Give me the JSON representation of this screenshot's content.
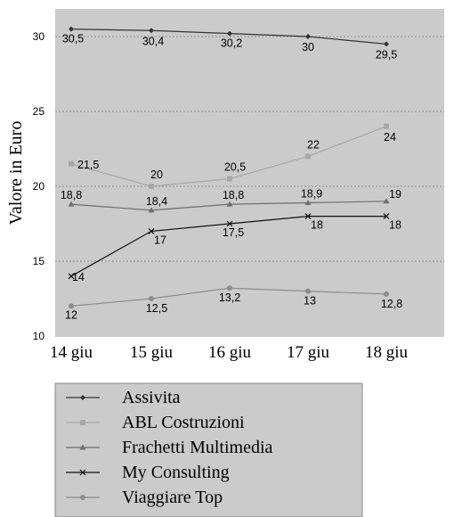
{
  "chart_data": {
    "type": "line",
    "ylabel": "Valore in Euro",
    "xlabel": "",
    "categories": [
      "14 giu",
      "15 giu",
      "16 giu",
      "17 giu",
      "18 giu"
    ],
    "ylim": [
      10,
      30
    ],
    "yticks": [
      10,
      15,
      20,
      25,
      30
    ],
    "grid": "horizontal dotted",
    "legend_position": "bottom",
    "series": [
      {
        "name": "Assivita",
        "marker": "diamond",
        "color": "#333333",
        "values": [
          30.5,
          30.4,
          30.2,
          30,
          29.5
        ],
        "labels": [
          "30,5",
          "30,4",
          "30,2",
          "30",
          "29,5"
        ]
      },
      {
        "name": "ABL Costruzioni",
        "marker": "square",
        "color": "#a8a8a8",
        "values": [
          21.5,
          20,
          20.5,
          22,
          24
        ],
        "labels": [
          "21,5",
          "20",
          "20,5",
          "22",
          "24"
        ]
      },
      {
        "name": "Frachetti Multimedia",
        "marker": "triangle",
        "color": "#6e6e6e",
        "values": [
          18.8,
          18.4,
          18.8,
          18.9,
          19
        ],
        "labels": [
          "18,8",
          "18,4",
          "18,8",
          "18,9",
          "19"
        ]
      },
      {
        "name": "My Consulting",
        "marker": "x",
        "color": "#111111",
        "values": [
          14,
          17,
          17.5,
          18,
          18
        ],
        "labels": [
          "14",
          "17",
          "17,5",
          "18",
          "18"
        ]
      },
      {
        "name": "Viaggiare Top",
        "marker": "circle",
        "color": "#8c8c8c",
        "values": [
          12,
          12.5,
          13.2,
          13,
          12.8
        ],
        "labels": [
          "12",
          "12,5",
          "13,2",
          "13",
          "12,8"
        ]
      }
    ]
  }
}
